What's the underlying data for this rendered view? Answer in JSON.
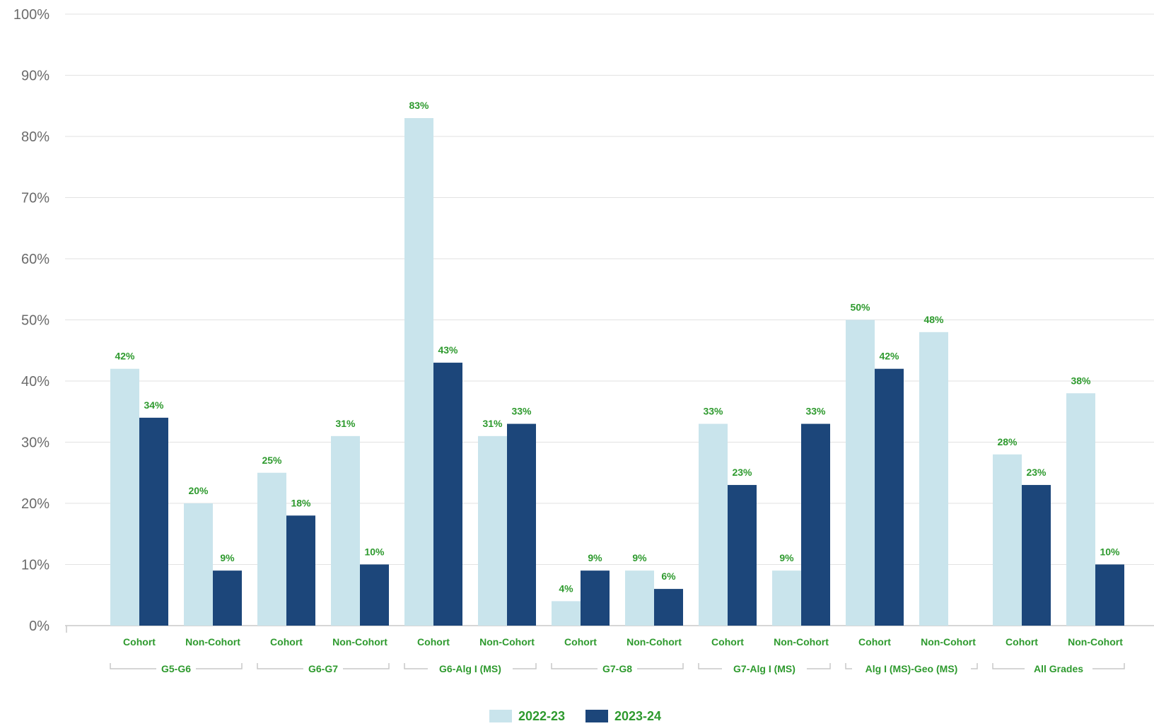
{
  "chart_data": {
    "type": "bar",
    "title": "",
    "xlabel": "",
    "ylabel": "",
    "ylim": [
      0,
      100
    ],
    "y_ticks": [
      "0%",
      "10%",
      "20%",
      "30%",
      "40%",
      "50%",
      "60%",
      "70%",
      "80%",
      "90%",
      "100%"
    ],
    "grid": true,
    "legend_position": "bottom-center",
    "groups": [
      "G5-G6",
      "G6-G7",
      "G6-Alg I (MS)",
      "G7-G8",
      "G7-Alg I (MS)",
      "Alg I (MS)-Geo (MS)",
      "All Grades"
    ],
    "subcategories": [
      "Cohort",
      "Non-Cohort"
    ],
    "series": [
      {
        "name": "2022-23",
        "color": "#c9e4ec",
        "values": [
          42,
          20,
          25,
          31,
          83,
          31,
          4,
          9,
          33,
          9,
          50,
          48,
          28,
          38
        ],
        "labels": [
          "42%",
          "20%",
          "25%",
          "31%",
          "83%",
          "31%",
          "4%",
          "9%",
          "33%",
          "9%",
          "50%",
          "48%",
          "28%",
          "38%"
        ]
      },
      {
        "name": "2023-24",
        "color": "#1c467a",
        "values": [
          34,
          9,
          18,
          10,
          43,
          33,
          9,
          6,
          23,
          33,
          42,
          null,
          23,
          10
        ],
        "labels": [
          "34%",
          "9%",
          "18%",
          "10%",
          "43%",
          "33%",
          "9%",
          "6%",
          "23%",
          "33%",
          "42%",
          "",
          "23%",
          "10%"
        ]
      }
    ],
    "label_color": "#2e9a2e"
  }
}
